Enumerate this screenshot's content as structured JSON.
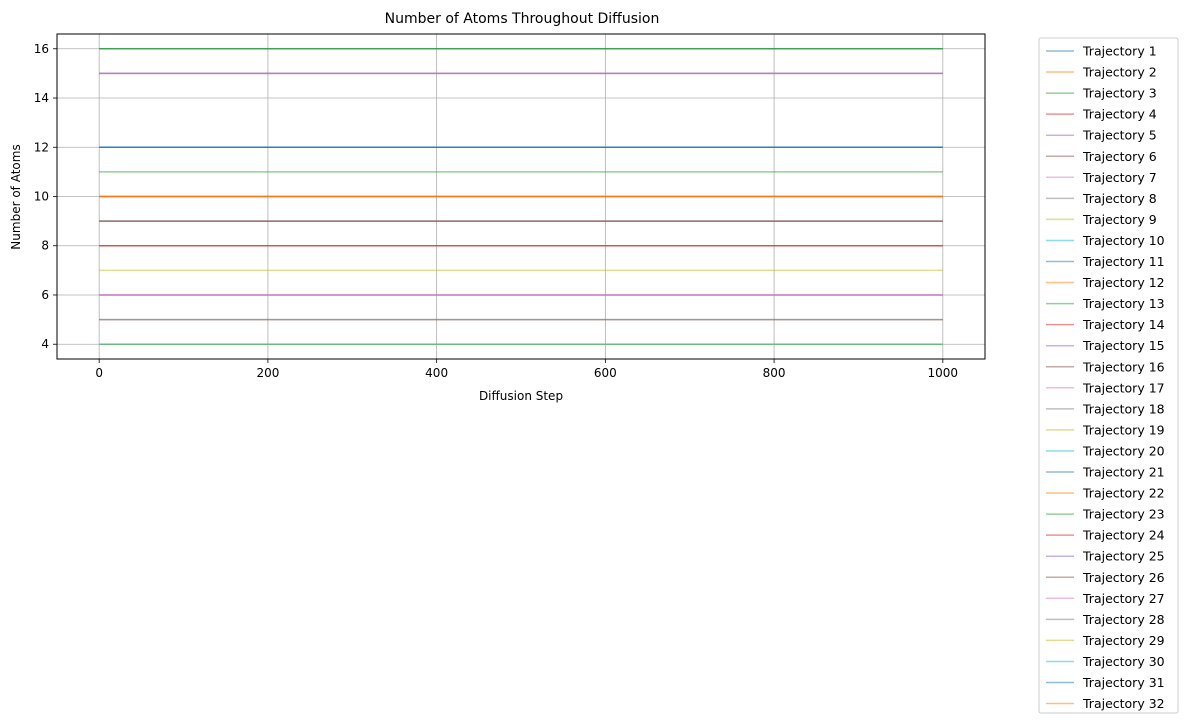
{
  "chart_data": {
    "type": "line",
    "title": "Number of Atoms Throughout Diffusion",
    "xlabel": "Diffusion Step",
    "ylabel": "Number of Atoms",
    "xlim": [
      -50,
      1050
    ],
    "ylim": [
      3.4,
      16.6
    ],
    "xticks": [
      0,
      200,
      400,
      600,
      800,
      1000
    ],
    "yticks": [
      4,
      6,
      8,
      10,
      12,
      14,
      16
    ],
    "grid": true,
    "legend_placement": "outside-right",
    "x": [
      0,
      1000
    ],
    "series": [
      {
        "name": "Trajectory 1",
        "color": "#1f77b4",
        "values": [
          16,
          16
        ]
      },
      {
        "name": "Trajectory 2",
        "color": "#ff7f0e",
        "values": [
          10,
          10
        ]
      },
      {
        "name": "Trajectory 3",
        "color": "#2ca02c",
        "values": [
          11,
          11
        ]
      },
      {
        "name": "Trajectory 4",
        "color": "#d62728",
        "values": [
          8,
          8
        ]
      },
      {
        "name": "Trajectory 5",
        "color": "#9467bd",
        "values": [
          15,
          15
        ]
      },
      {
        "name": "Trajectory 6",
        "color": "#8c564b",
        "values": [
          9,
          9
        ]
      },
      {
        "name": "Trajectory 7",
        "color": "#e377c2",
        "values": [
          6,
          6
        ]
      },
      {
        "name": "Trajectory 8",
        "color": "#7f7f7f",
        "values": [
          12,
          12
        ]
      },
      {
        "name": "Trajectory 9",
        "color": "#bcbd22",
        "values": [
          7,
          7
        ]
      },
      {
        "name": "Trajectory 10",
        "color": "#17becf",
        "values": [
          4,
          4
        ]
      },
      {
        "name": "Trajectory 11",
        "color": "#1f77b4",
        "values": [
          12,
          12
        ]
      },
      {
        "name": "Trajectory 12",
        "color": "#ff7f0e",
        "values": [
          4,
          4
        ]
      },
      {
        "name": "Trajectory 13",
        "color": "#2ca02c",
        "values": [
          16,
          16
        ]
      },
      {
        "name": "Trajectory 14",
        "color": "#d62728",
        "values": [
          10,
          10
        ]
      },
      {
        "name": "Trajectory 15",
        "color": "#9467bd",
        "values": [
          6,
          6
        ]
      },
      {
        "name": "Trajectory 16",
        "color": "#8c564b",
        "values": [
          5,
          5
        ]
      },
      {
        "name": "Trajectory 17",
        "color": "#e377c2",
        "values": [
          15,
          15
        ]
      },
      {
        "name": "Trajectory 18",
        "color": "#7f7f7f",
        "values": [
          9,
          9
        ]
      },
      {
        "name": "Trajectory 19",
        "color": "#bcbd22",
        "values": [
          4,
          4
        ]
      },
      {
        "name": "Trajectory 20",
        "color": "#17becf",
        "values": [
          12,
          12
        ]
      },
      {
        "name": "Trajectory 21",
        "color": "#1f77b4",
        "values": [
          12,
          12
        ]
      },
      {
        "name": "Trajectory 22",
        "color": "#ff7f0e",
        "values": [
          10,
          10
        ]
      },
      {
        "name": "Trajectory 23",
        "color": "#2ca02c",
        "values": [
          16,
          16
        ]
      },
      {
        "name": "Trajectory 24",
        "color": "#d62728",
        "values": [
          8,
          8
        ]
      },
      {
        "name": "Trajectory 25",
        "color": "#9467bd",
        "values": [
          15,
          15
        ]
      },
      {
        "name": "Trajectory 26",
        "color": "#8c564b",
        "values": [
          9,
          9
        ]
      },
      {
        "name": "Trajectory 27",
        "color": "#e377c2",
        "values": [
          6,
          6
        ]
      },
      {
        "name": "Trajectory 28",
        "color": "#7f7f7f",
        "values": [
          5,
          5
        ]
      },
      {
        "name": "Trajectory 29",
        "color": "#bcbd22",
        "values": [
          4,
          4
        ]
      },
      {
        "name": "Trajectory 30",
        "color": "#17becf",
        "values": [
          4,
          4
        ]
      },
      {
        "name": "Trajectory 31",
        "color": "#1f77b4",
        "values": [
          12,
          12
        ]
      },
      {
        "name": "Trajectory 32",
        "color": "#ff7f0e",
        "values": [
          10,
          10
        ]
      }
    ]
  }
}
